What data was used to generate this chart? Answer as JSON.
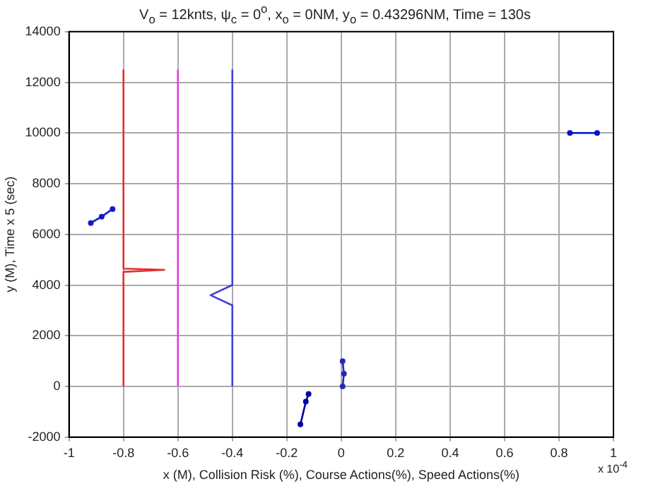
{
  "chart_data": {
    "type": "line",
    "title": "V$_{o}$ = 12knts, ψ$_{c}$ = 0$^{o}$, x$_{o}$ = 0NM, y$_{o}$ = 0.43296NM, Time = 130s",
    "xlabel": "x (M), Collision Risk (%), Course Actions(%), Speed Actions(%)",
    "ylabel": "y (M), Time x 5 (sec)",
    "annotations": [
      "x 10$^{-4}$"
    ],
    "xlim": [
      -1,
      1
    ],
    "xticks": [
      -1,
      -0.8,
      -0.6,
      -0.4,
      -0.2,
      0,
      0.2,
      0.4,
      0.6,
      0.8,
      1
    ],
    "ylim": [
      -2000,
      14000
    ],
    "yticks": [
      -2000,
      0,
      2000,
      4000,
      6000,
      8000,
      10000,
      12000,
      14000
    ],
    "grid": true,
    "legend": false,
    "series": [
      {
        "color": "#e03030",
        "marker": "none",
        "x": [
          -0.8,
          -0.8,
          -0.65,
          -0.8,
          -0.8
        ],
        "values": [
          0,
          4520,
          4600,
          4650,
          12500
        ]
      },
      {
        "color": "#e040e0",
        "marker": "none",
        "x": [
          -0.6,
          -0.6
        ],
        "values": [
          0,
          12500
        ]
      },
      {
        "color": "#4040e0",
        "marker": "none",
        "x": [
          -0.4,
          -0.4,
          -0.48,
          -0.4,
          -0.4
        ],
        "values": [
          0,
          3200,
          3600,
          4000,
          12500
        ]
      },
      {
        "color": "#1818c8",
        "marker": "circle",
        "x": [
          -0.92,
          -0.88,
          -0.84
        ],
        "values": [
          6450,
          6700,
          7000
        ]
      },
      {
        "color": "#0000a0",
        "marker": "circle",
        "x": [
          -0.15,
          -0.13,
          -0.12
        ],
        "values": [
          -1500,
          -600,
          -300
        ]
      },
      {
        "color": "#2828b0",
        "marker": "circle",
        "x": [
          0.005,
          0.01,
          0.005
        ],
        "values": [
          0,
          500,
          1000
        ]
      },
      {
        "color": "#0010d8",
        "marker": "circle",
        "x": [
          0.84,
          0.94
        ],
        "values": [
          10000,
          10000
        ]
      }
    ]
  }
}
